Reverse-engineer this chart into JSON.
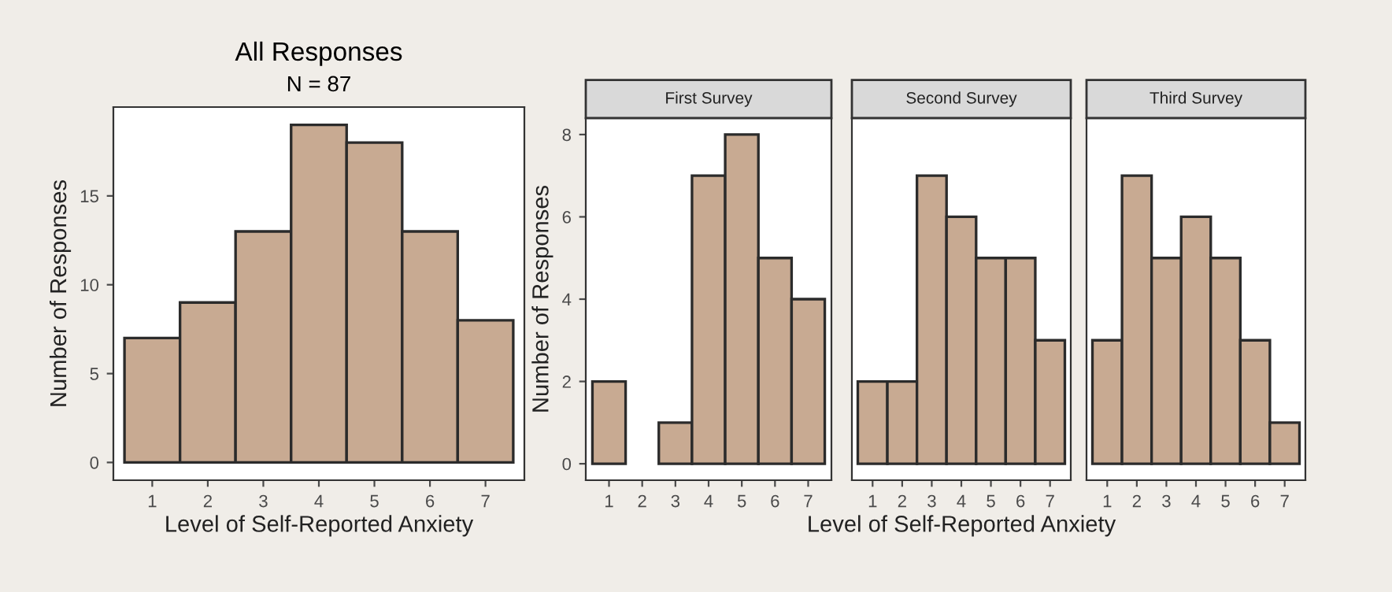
{
  "chart_data": [
    {
      "type": "histogram",
      "title": "All Responses",
      "subtitle": "N = 87",
      "xlabel": "Level of Self-Reported Anxiety",
      "ylabel": "Number of Responses",
      "bins": [
        0.5,
        1.5,
        2.5,
        3.5,
        4.5,
        5.5,
        6.5,
        7.5
      ],
      "values": [
        7,
        9,
        13,
        19,
        18,
        13,
        8
      ],
      "color": "#c8aa92",
      "xlim": [
        0.3,
        7.7
      ],
      "xticks": [
        1,
        2,
        3,
        4,
        5,
        6,
        7
      ],
      "ylim": [
        -1,
        20
      ],
      "yticks": [
        0,
        5,
        10,
        15
      ],
      "grid": false
    },
    {
      "type": "histogram",
      "title": "First Survey",
      "ylabel": "Number of Responses",
      "bins": [
        0.5,
        1.5,
        2.5,
        3.5,
        4.5,
        5.5,
        6.5,
        7.5
      ],
      "values": [
        2,
        0,
        1,
        7,
        8,
        5,
        4
      ],
      "color": "#c8aa92",
      "xlim": [
        0.3,
        7.7
      ],
      "xticks": [
        1,
        2,
        3,
        4,
        5,
        6,
        7
      ],
      "ylim": [
        -0.4,
        8.4
      ],
      "yticks": [
        0,
        2,
        4,
        6,
        8
      ],
      "grid": false
    },
    {
      "type": "histogram",
      "title": "Second Survey",
      "xlabel": "Level of Self-Reported Anxiety",
      "bins": [
        0.5,
        1.5,
        2.5,
        3.5,
        4.5,
        5.5,
        6.5,
        7.5
      ],
      "values": [
        2,
        2,
        7,
        6,
        5,
        5,
        3
      ],
      "color": "#c8aa92",
      "xlim": [
        0.3,
        7.7
      ],
      "xticks": [
        1,
        2,
        3,
        4,
        5,
        6,
        7
      ],
      "ylim": [
        -0.4,
        8.4
      ],
      "yticks": [
        0,
        2,
        4,
        6,
        8
      ],
      "grid": false,
      "tick_labels": "x"
    },
    {
      "type": "histogram",
      "title": "Third Survey",
      "bins": [
        0.5,
        1.5,
        2.5,
        3.5,
        4.5,
        5.5,
        6.5,
        7.5
      ],
      "values": [
        3,
        7,
        5,
        6,
        5,
        3,
        1
      ],
      "color": "#c8aa92",
      "xlim": [
        0.3,
        7.7
      ],
      "xticks": [
        1,
        2,
        3,
        4,
        5,
        6,
        7
      ],
      "ylim": [
        -0.4,
        8.4
      ],
      "yticks": [
        0,
        2,
        4,
        6,
        8
      ],
      "grid": false,
      "tick_labels": "x"
    }
  ]
}
